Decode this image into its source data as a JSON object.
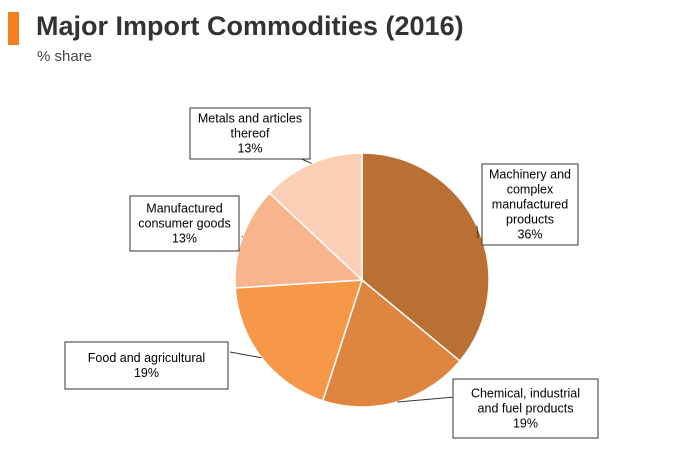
{
  "chart_data": {
    "type": "pie",
    "title": "Major Import Commodities (2016)",
    "subtitle": "% share",
    "slices": [
      {
        "name": "Machinery and complex manufactured products",
        "label_lines": [
          "Machinery and",
          "complex",
          "manufactured",
          "products"
        ],
        "value": 36,
        "value_label": "36%",
        "color": "#ba7033"
      },
      {
        "name": "Chemical, industrial and fuel products",
        "label_lines": [
          "Chemical, industrial",
          "and fuel products"
        ],
        "value": 19,
        "value_label": "19%",
        "color": "#de863f"
      },
      {
        "name": "Food and agricultural",
        "label_lines": [
          "Food and agricultural"
        ],
        "value": 19,
        "value_label": "19%",
        "color": "#f69848"
      },
      {
        "name": "Manufactured consumer goods",
        "label_lines": [
          "Manufactured",
          "consumer goods"
        ],
        "value": 13,
        "value_label": "13%",
        "color": "#f8b48d"
      },
      {
        "name": "Metals and articles thereof",
        "label_lines": [
          "Metals and articles",
          "thereof"
        ],
        "value": 13,
        "value_label": "13%",
        "color": "#fbcfb6"
      }
    ],
    "start_angle": "12 o'clock",
    "direction": "clockwise",
    "legend": "none"
  },
  "accent_color": "#f47f20"
}
